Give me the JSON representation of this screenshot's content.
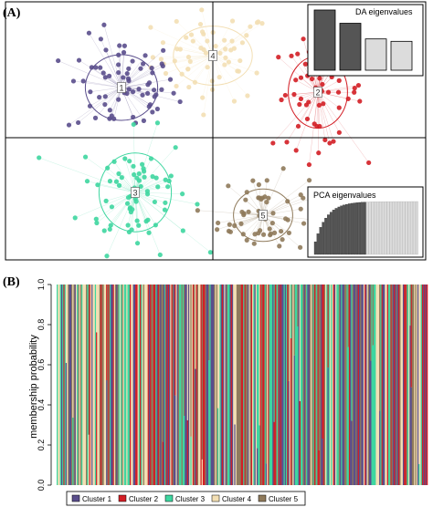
{
  "panel_a_label": "(A)",
  "panel_b_label": "(B)",
  "colors": {
    "cluster1": "#5a4e8c",
    "cluster2": "#d31e25",
    "cluster3": "#3ed6a0",
    "cluster4": "#f3dfb4",
    "cluster5": "#8f7a5b",
    "bar_dark": "#555555",
    "bar_light": "#dcdcdc"
  },
  "chart_data": [
    {
      "type": "scatter",
      "title": "",
      "xlabel": "",
      "ylabel": "",
      "clusters": [
        {
          "name": "1",
          "center": [
            -1.0,
            0.55
          ],
          "spread": [
            0.55,
            0.5
          ],
          "n": 70
        },
        {
          "name": "2",
          "center": [
            1.15,
            0.5
          ],
          "spread": [
            0.45,
            0.55
          ],
          "n": 65
        },
        {
          "name": "3",
          "center": [
            -0.85,
            -0.6
          ],
          "spread": [
            0.55,
            0.6
          ],
          "n": 75
        },
        {
          "name": "4",
          "center": [
            0.0,
            0.9
          ],
          "spread": [
            0.6,
            0.45
          ],
          "n": 60
        },
        {
          "name": "5",
          "center": [
            0.55,
            -0.85
          ],
          "spread": [
            0.45,
            0.4
          ],
          "n": 60
        }
      ],
      "inset_da": {
        "label": "DA eigenvalues",
        "values": [
          1.0,
          0.78,
          0.52,
          0.48
        ]
      },
      "inset_pca": {
        "label": "PCA eigenvalues",
        "n_retained": 20,
        "n_total": 40
      }
    },
    {
      "type": "bar",
      "subtype": "stacked-membership",
      "ylabel": "membership probability",
      "ylim": [
        0,
        1
      ],
      "yticks": [
        "0.0",
        "0.2",
        "0.4",
        "0.6",
        "0.8",
        "1.0"
      ],
      "n_individuals": 330,
      "legend": [
        "Cluster 1",
        "Cluster 2",
        "Cluster 3",
        "Cluster 4",
        "Cluster 5"
      ],
      "legend_position": "bottom"
    }
  ]
}
